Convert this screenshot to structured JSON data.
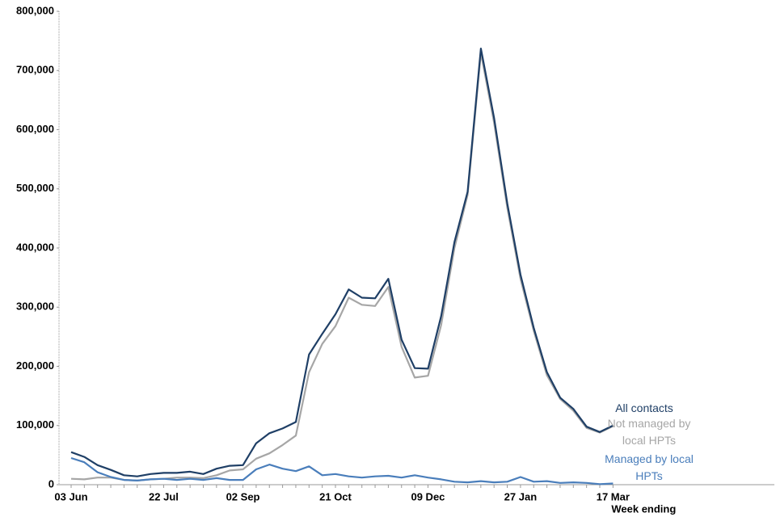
{
  "chart_data": {
    "type": "line",
    "x_label": "Week ending",
    "categories": [
      "03 Jun",
      null,
      null,
      null,
      null,
      null,
      null,
      "22 Jul",
      null,
      null,
      null,
      null,
      null,
      "02 Sep",
      null,
      null,
      null,
      null,
      null,
      null,
      "21 Oct",
      null,
      null,
      null,
      null,
      null,
      null,
      "09 Dec",
      null,
      null,
      null,
      null,
      null,
      null,
      "27 Jan",
      null,
      null,
      null,
      null,
      null,
      null,
      "17 Mar"
    ],
    "series": [
      {
        "name": "All contacts",
        "color": "#1f3f66",
        "values": [
          55000,
          47000,
          33000,
          25000,
          16000,
          14000,
          18000,
          20000,
          20000,
          22000,
          18000,
          27000,
          32000,
          33000,
          70000,
          87000,
          95000,
          106000,
          220000,
          255000,
          288000,
          330000,
          316000,
          315000,
          348000,
          245000,
          197000,
          196000,
          285000,
          410000,
          495000,
          737000,
          620000,
          475000,
          355000,
          265000,
          190000,
          147000,
          128000,
          98000,
          89000,
          100000
        ]
      },
      {
        "name": "Not managed by local HPTs",
        "color": "#a6a6a6",
        "values": [
          10000,
          9000,
          12000,
          12000,
          8000,
          7000,
          9000,
          10000,
          12000,
          12000,
          11000,
          16000,
          24000,
          26000,
          44000,
          53000,
          67000,
          83000,
          190000,
          238000,
          268000,
          316000,
          304000,
          302000,
          334000,
          233000,
          181000,
          184000,
          270000,
          400000,
          490000,
          730000,
          612000,
          468000,
          348000,
          260000,
          185000,
          145000,
          125000,
          96000,
          88000,
          99000
        ]
      },
      {
        "name": "Managed by local HPTs",
        "color": "#4a7ebb",
        "values": [
          45000,
          38000,
          21000,
          13000,
          8000,
          7000,
          9000,
          10000,
          8000,
          10000,
          8000,
          11000,
          8000,
          8000,
          26000,
          34000,
          27000,
          23000,
          31000,
          16000,
          18000,
          14000,
          12000,
          14000,
          15000,
          12000,
          16000,
          12000,
          9000,
          5000,
          4000,
          6000,
          4000,
          5000,
          13000,
          5000,
          6000,
          3000,
          4000,
          3000,
          1000,
          2000
        ]
      }
    ],
    "ylim": [
      0,
      800000
    ],
    "yticks": [
      0,
      {
        "value": 100000,
        "label": "100,000"
      },
      {
        "value": 200000,
        "label": "200,000"
      },
      {
        "value": 300000,
        "label": "300,000"
      },
      {
        "value": 400000,
        "label": "400,000"
      },
      {
        "value": 500000,
        "label": "500,000"
      },
      {
        "value": 600000,
        "label": "600,000"
      },
      {
        "value": 700000,
        "label": "700,000"
      },
      {
        "value": 800000,
        "label": "800,000"
      }
    ],
    "grid": false
  }
}
